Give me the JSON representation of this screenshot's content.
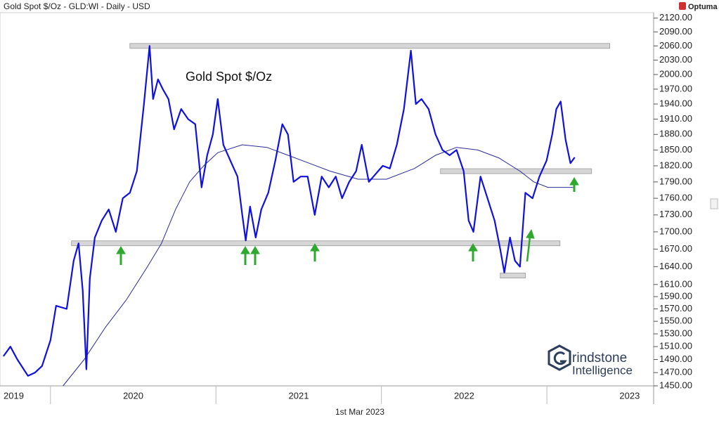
{
  "header": {
    "title": "Gold Spot $/Oz - GLD:WI - Daily - USD",
    "brand": "Optuma"
  },
  "footer": {
    "date": "1st Mar 2023"
  },
  "logo": {
    "line1": "rindstone",
    "line2": "Intelligence"
  },
  "chart_data": {
    "type": "line",
    "log_y": true,
    "xlim": [
      2019.695,
      2023.645
    ],
    "xticks": [
      2019,
      2020,
      2021,
      2022,
      2023
    ],
    "ylim": [
      1450,
      2132
    ],
    "yticks": [
      {
        "value": 2120,
        "label": "2120.00"
      },
      {
        "value": 2090,
        "label": "2090.00"
      },
      {
        "value": 2060,
        "label": "2060.00"
      },
      {
        "value": 2030,
        "label": "2030.00"
      },
      {
        "value": 2000,
        "label": "2000.00"
      },
      {
        "value": 1970,
        "label": "1970.00"
      },
      {
        "value": 1940,
        "label": "1940.00"
      },
      {
        "value": 1910,
        "label": "1910.00"
      },
      {
        "value": 1880,
        "label": "1880.00"
      },
      {
        "value": 1850,
        "label": "1850.00"
      },
      {
        "value": 1820,
        "label": "1820.00"
      },
      {
        "value": 1790,
        "label": "1790.00"
      },
      {
        "value": 1760,
        "label": "1760.00"
      },
      {
        "value": 1730,
        "label": "1730.00"
      },
      {
        "value": 1700,
        "label": "1700.00"
      },
      {
        "value": 1670,
        "label": "1670.00"
      },
      {
        "value": 1640,
        "label": "1640.00"
      },
      {
        "value": 1610,
        "label": "1610.00"
      },
      {
        "value": 1590,
        "label": "1590.00"
      },
      {
        "value": 1570,
        "label": "1570.00"
      },
      {
        "value": 1550,
        "label": "1550.00"
      },
      {
        "value": 1530,
        "label": "1530.00"
      },
      {
        "value": 1510,
        "label": "1510.00"
      },
      {
        "value": 1490,
        "label": "1490.00"
      },
      {
        "value": 1470,
        "label": "1470.00"
      },
      {
        "value": 1450,
        "label": "1450.00"
      }
    ],
    "series": [
      {
        "name": "Gold Spot $/Oz",
        "color": "#1010e0",
        "x": [
          2019.716,
          2019.758,
          2019.8,
          2019.864,
          2019.907,
          2019.949,
          2020.0,
          2020.034,
          2020.098,
          2020.14,
          2020.17,
          2020.195,
          2020.217,
          2020.238,
          2020.268,
          2020.31,
          2020.352,
          2020.395,
          2020.437,
          2020.48,
          2020.522,
          2020.565,
          2020.599,
          2020.62,
          2020.65,
          2020.679,
          2020.713,
          2020.747,
          2020.79,
          2020.832,
          2020.875,
          2020.913,
          2020.947,
          2020.981,
          2021.011,
          2021.045,
          2021.087,
          2021.13,
          2021.159,
          2021.18,
          2021.206,
          2021.24,
          2021.274,
          2021.316,
          2021.359,
          2021.401,
          2021.435,
          2021.469,
          2021.512,
          2021.554,
          2021.597,
          2021.639,
          2021.682,
          2021.724,
          2021.762,
          2021.805,
          2021.847,
          2021.881,
          2021.924,
          2021.966,
          2022.008,
          2022.051,
          2022.093,
          2022.136,
          2022.178,
          2022.208,
          2022.242,
          2022.285,
          2022.327,
          2022.369,
          2022.412,
          2022.454,
          2022.497,
          2022.527,
          2022.556,
          2022.599,
          2022.641,
          2022.684,
          2022.718,
          2022.743,
          2022.777,
          2022.807,
          2022.837,
          2022.87,
          2022.913,
          2022.955,
          2022.998,
          2023.032,
          2023.057,
          2023.083,
          2023.113,
          2023.142,
          2023.168
        ],
        "values": [
          1495,
          1510,
          1490,
          1465,
          1470,
          1480,
          1520,
          1575,
          1570,
          1650,
          1680,
          1600,
          1475,
          1620,
          1690,
          1720,
          1740,
          1700,
          1760,
          1770,
          1810,
          1940,
          2060,
          1950,
          1990,
          1970,
          1950,
          1890,
          1930,
          1910,
          1900,
          1780,
          1840,
          1880,
          1950,
          1860,
          1830,
          1800,
          1730,
          1685,
          1745,
          1690,
          1740,
          1770,
          1830,
          1900,
          1880,
          1790,
          1800,
          1800,
          1730,
          1800,
          1780,
          1800,
          1760,
          1790,
          1810,
          1860,
          1790,
          1805,
          1820,
          1815,
          1860,
          1930,
          2050,
          1940,
          1950,
          1930,
          1880,
          1850,
          1840,
          1850,
          1810,
          1720,
          1700,
          1800,
          1760,
          1720,
          1670,
          1630,
          1690,
          1650,
          1640,
          1770,
          1760,
          1800,
          1830,
          1880,
          1930,
          1945,
          1870,
          1825,
          1836
        ]
      },
      {
        "color": "#2a2a9a",
        "x": [
          2020.076,
          2020.204,
          2020.331,
          2020.459,
          2020.586,
          2020.671,
          2020.756,
          2020.841,
          2020.926,
          2021.011,
          2021.159,
          2021.308,
          2021.435,
          2021.563,
          2021.69,
          2021.86,
          2022.03,
          2022.2,
          2022.327,
          2022.454,
          2022.582,
          2022.709,
          2022.837,
          2022.921,
          2023.006,
          2023.168
        ],
        "values": [
          1450,
          1490,
          1540,
          1585,
          1640,
          1680,
          1740,
          1790,
          1820,
          1845,
          1860,
          1855,
          1840,
          1825,
          1810,
          1795,
          1795,
          1815,
          1840,
          1855,
          1850,
          1835,
          1810,
          1790,
          1780,
          1780
        ]
      }
    ],
    "levels": [
      {
        "value": 2060,
        "x": [
          2020.48,
          2023.38
        ]
      },
      {
        "value": 1680,
        "x": [
          2020.127,
          2023.079
        ]
      },
      {
        "value": 1810,
        "x": [
          2022.357,
          2023.27
        ]
      },
      {
        "value": 1625,
        "x": [
          2022.718,
          2022.87
        ]
      }
    ]
  }
}
